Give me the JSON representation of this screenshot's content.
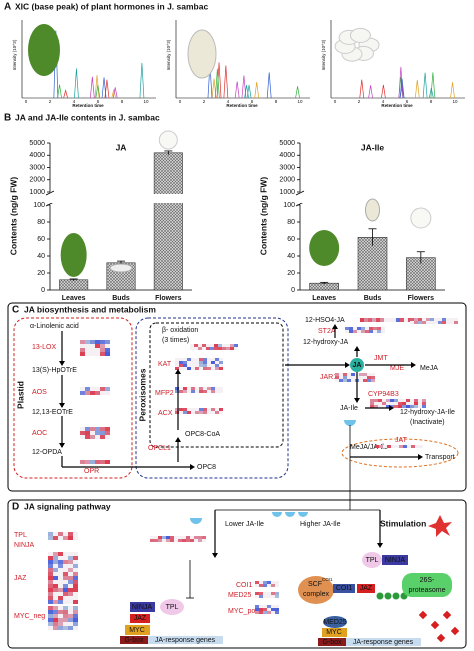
{
  "panel_a": {
    "letter": "A",
    "title": "XIC (base peak) of plant hormones in J. sambac",
    "ylabel": "Intensity (10^3)",
    "xlabel": "Retention time",
    "xticks": [
      "0",
      "2",
      "4",
      "6",
      "8",
      "10"
    ]
  },
  "panel_b": {
    "letter": "B",
    "title": "JA and JA-Ile contents in J. sambac"
  },
  "chart_data": [
    {
      "type": "bar",
      "title": "JA",
      "ylabel": "Contents (ng/g FW)",
      "categories": [
        "Leaves",
        "Buds",
        "Flowers"
      ],
      "values": [
        12,
        32,
        4200
      ],
      "errors": [
        1,
        2,
        150
      ],
      "color": "#9a9a9a",
      "ylim": [
        0,
        5000
      ],
      "axis_break": [
        100,
        1000
      ],
      "yticks": [
        0,
        20,
        40,
        60,
        80,
        100,
        1000,
        2000,
        3000,
        4000,
        5000
      ]
    },
    {
      "type": "bar",
      "title": "JA-Ile",
      "ylabel": "Contents (ng/g FW)",
      "categories": [
        "Leaves",
        "Buds",
        "Flowers"
      ],
      "values": [
        8,
        62,
        38
      ],
      "errors": [
        1,
        10,
        7
      ],
      "color": "#9a9a9a",
      "ylim": [
        0,
        5000
      ],
      "axis_break": [
        100,
        1000
      ],
      "yticks": [
        0,
        20,
        40,
        60,
        80,
        100,
        1000,
        2000,
        3000,
        4000,
        5000
      ]
    }
  ],
  "panel_c": {
    "letter": "C",
    "title": "JA biosynthesis and metabolism",
    "labels": {
      "linolenic": "α-Linolenic acid",
      "lox": "13-LOX",
      "hpotre": "13(S)-HpOTrE",
      "aos": "AOS",
      "eotre": "12,13-EOTrE",
      "aoc": "AOC",
      "opda": "12-OPDA",
      "opr": "OPR",
      "plastid": "Plastid",
      "peroxisomes": "Peroxisomes",
      "beta": "β- oxidation",
      "times": "(3 times)",
      "kat": "KAT",
      "mfp2": "MFP2",
      "acx": "ACX",
      "opc8coa": "OPC8-CoA",
      "opcl1": "OPCL1",
      "opc8": "OPC8",
      "hso4": "12-HSO4-JA",
      "st2a": "ST2A",
      "hydroxyja": "12-hydroxy-JA",
      "ja": "JA",
      "jmt": "JMT",
      "mje": "MJE",
      "meja": "MeJA",
      "jar1": "JAR1",
      "jaile": "JA-Ile",
      "cyp": "CYP94B3",
      "hydroxyjaile": "12-hydroxy-JA-Ile",
      "inactivate": "(Inactivate)",
      "mejajaile": "MeJA/JA-Ile",
      "jat": "JAT",
      "transport": "Transport"
    }
  },
  "panel_d": {
    "letter": "D",
    "title": "JA signaling pathway",
    "labels": {
      "lower": "Lower JA-Ile",
      "higher": "Higher JA-Ile",
      "stimulation": "Stimulation",
      "tpl": "TPL",
      "ninja": "NINJA",
      "jaz": "JAZ",
      "myc_neg": "MYC_neg",
      "coi1": "COI1",
      "med25": "MED25",
      "myc_pos": "MYC_pos",
      "myc": "MYC",
      "gbox": "G-box",
      "response": "JA-response genes",
      "scf": "SCF",
      "coi1sup": "COI1",
      "complex": "complex",
      "proteasome26": "26S-",
      "proteasome": "proteasome"
    }
  }
}
